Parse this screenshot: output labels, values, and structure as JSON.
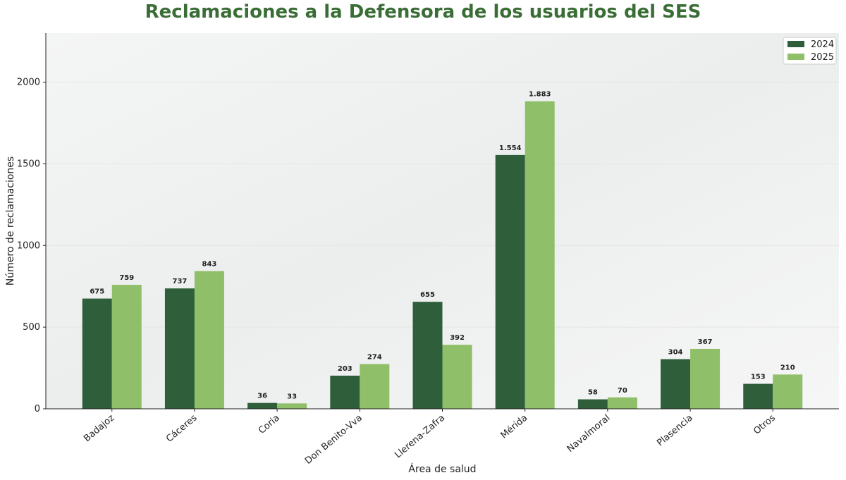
{
  "chart_data": {
    "type": "bar",
    "title": "Reclamaciones a la Defensora de los usuarios del SES",
    "xlabel": "Área de salud",
    "ylabel": "Número de reclamaciones",
    "categories": [
      "Badajoz",
      "Cáceres",
      "Coria",
      "Don Benito-Vva",
      "Llerena-Zafra",
      "Mérida",
      "Navalmoral",
      "Plasencia",
      "Otros"
    ],
    "series": [
      {
        "name": "2024",
        "color": "#2e5e3a",
        "values": [
          675,
          737,
          36,
          203,
          655,
          1554,
          58,
          304,
          153
        ],
        "labels": [
          "675",
          "737",
          "36",
          "203",
          "655",
          "1.554",
          "58",
          "304",
          "153"
        ]
      },
      {
        "name": "2025",
        "color": "#8fbf69",
        "values": [
          759,
          843,
          33,
          274,
          392,
          1883,
          70,
          367,
          210
        ],
        "labels": [
          "759",
          "843",
          "33",
          "274",
          "392",
          "1.883",
          "70",
          "367",
          "210"
        ]
      }
    ],
    "ylim": [
      0,
      2300
    ],
    "yticks": [
      0,
      500,
      1000,
      1500,
      2000
    ],
    "legend": "top-right",
    "grid": "faint horizontal",
    "title_color": "#3a6e36"
  }
}
